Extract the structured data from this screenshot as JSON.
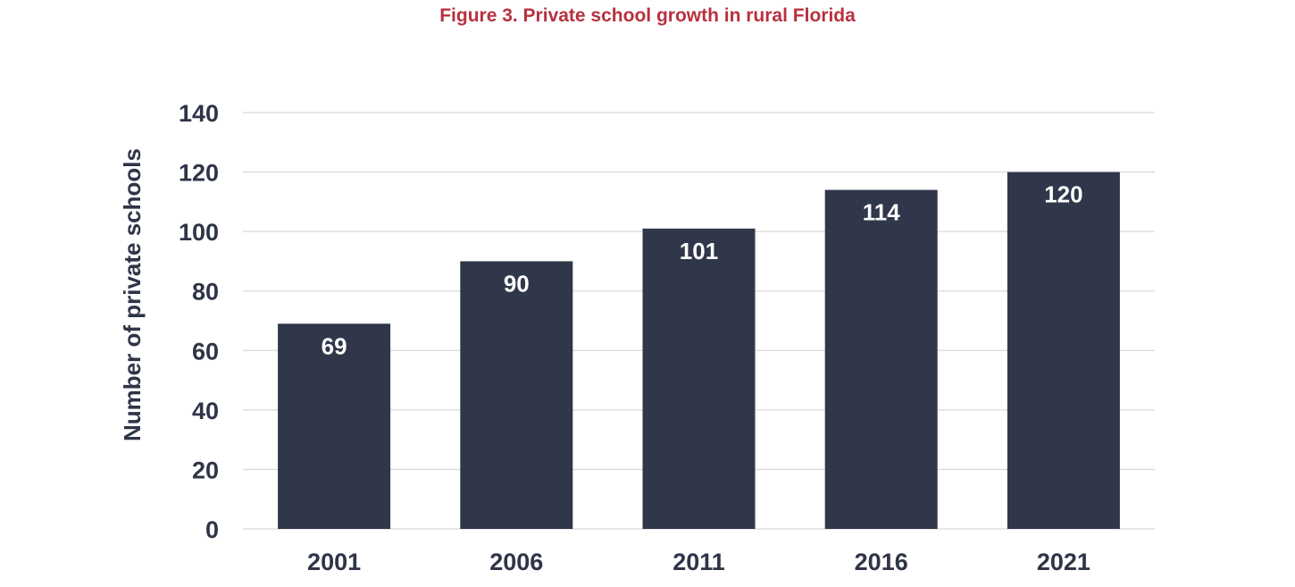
{
  "colors": {
    "title": "#b8313f",
    "bar": "#30374a",
    "text": "#2f3547",
    "grid": "#d9d9d9",
    "label": "#ffffff"
  },
  "chart_data": {
    "type": "bar",
    "title": "Figure 3. Private school growth in rural Florida",
    "xlabel": "",
    "ylabel": "Number of private schools",
    "categories": [
      "2001",
      "2006",
      "2011",
      "2016",
      "2021"
    ],
    "values": [
      69,
      90,
      101,
      114,
      120
    ],
    "data_labels": [
      "69",
      "90",
      "101",
      "114",
      "120"
    ],
    "yticks": [
      "0",
      "20",
      "40",
      "60",
      "80",
      "100",
      "120",
      "140"
    ],
    "ylim": [
      0,
      140
    ],
    "grid": true,
    "legend": "none"
  }
}
